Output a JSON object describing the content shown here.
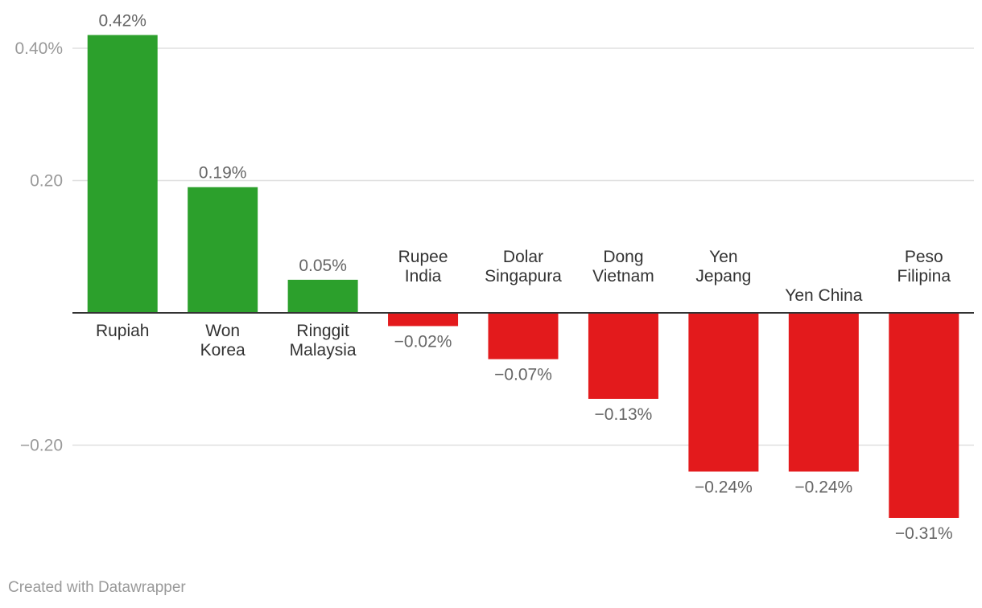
{
  "chart_data": {
    "type": "bar",
    "categories": [
      [
        "Rupiah"
      ],
      [
        "Won",
        "Korea"
      ],
      [
        "Ringgit",
        "Malaysia"
      ],
      [
        "Rupee",
        "India"
      ],
      [
        "Dolar",
        "Singapura"
      ],
      [
        "Dong",
        "Vietnam"
      ],
      [
        "Yen",
        "Jepang"
      ],
      [
        "Yen China"
      ],
      [
        "Peso",
        "Filipina"
      ]
    ],
    "values": [
      0.42,
      0.19,
      0.05,
      -0.02,
      -0.07,
      -0.13,
      -0.24,
      -0.24,
      -0.31
    ],
    "value_labels": [
      "0.42%",
      "0.19%",
      "0.05%",
      "−0.02%",
      "−0.07%",
      "−0.13%",
      "−0.24%",
      "−0.24%",
      "−0.31%"
    ],
    "y_ticks": [
      {
        "value": 0.4,
        "label": "0.40%"
      },
      {
        "value": 0.2,
        "label": "0.20"
      },
      {
        "value": -0.2,
        "label": "−0.20"
      }
    ],
    "ylim": [
      -0.36,
      0.46
    ],
    "grid": true,
    "colors": {
      "positive": "#2ca02c",
      "negative": "#e31a1c",
      "baseline": "#333333",
      "grid": "#e0e0e0"
    }
  },
  "footer": {
    "credit": "Created with Datawrapper"
  }
}
